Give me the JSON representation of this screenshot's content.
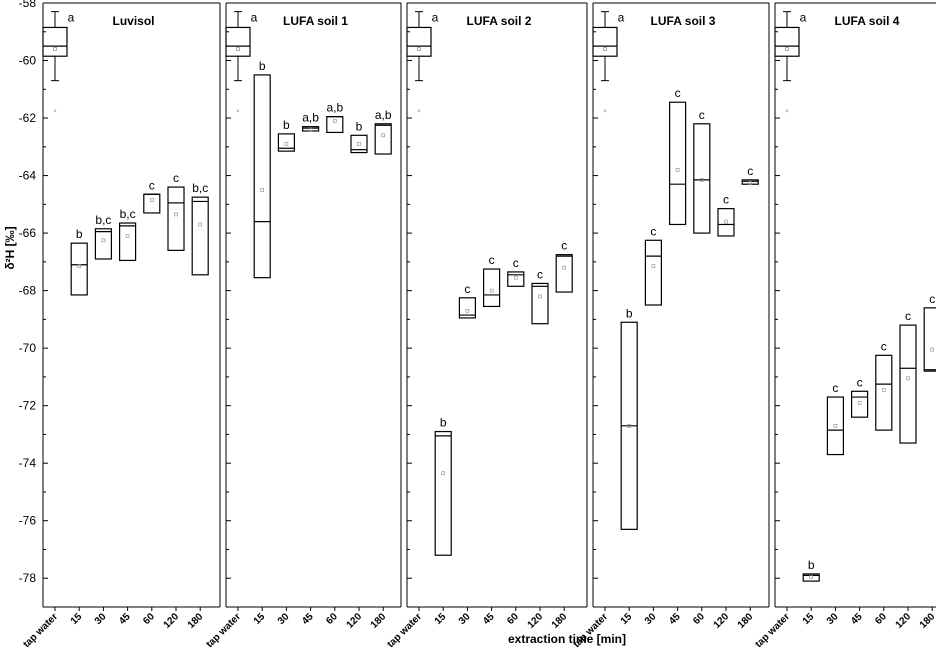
{
  "chart_data": {
    "type": "box",
    "xlabel": "extraction time [min]",
    "ylabel": "δ²H [‰]",
    "ylim": [
      -79,
      -58
    ],
    "yticks": [
      -58,
      -60,
      -62,
      -64,
      -66,
      -68,
      -70,
      -72,
      -74,
      -76,
      -78
    ],
    "categories": [
      "tap water",
      "15",
      "30",
      "45",
      "60",
      "120",
      "180"
    ],
    "tap_water": {
      "whisker_top": -58.3,
      "q3": -58.85,
      "median": -59.5,
      "q1": -59.85,
      "whisker_bottom": -60.7,
      "mean": -59.6,
      "outlier": -61.75,
      "letter": "a"
    },
    "panels": [
      {
        "title": "Luvisol",
        "boxes": [
          {
            "category": "15",
            "q3": -66.35,
            "median": -67.1,
            "q1": -68.15,
            "mean": -67.15,
            "letter": "b"
          },
          {
            "category": "30",
            "q3": -65.85,
            "median": -65.95,
            "q1": -66.9,
            "mean": -66.25,
            "letter": "b,c"
          },
          {
            "category": "45",
            "q3": -65.65,
            "median": -65.75,
            "q1": -66.95,
            "mean": -66.1,
            "letter": "b,c"
          },
          {
            "category": "60",
            "q3": -64.65,
            "median": -64.65,
            "q1": -65.3,
            "mean": -64.85,
            "letter": "c"
          },
          {
            "category": "120",
            "q3": -64.4,
            "median": -64.95,
            "q1": -66.6,
            "mean": -65.35,
            "letter": "c"
          },
          {
            "category": "180",
            "q3": -64.75,
            "median": -64.9,
            "q1": -67.45,
            "mean": -65.7,
            "letter": "b,c"
          }
        ]
      },
      {
        "title": "LUFA soil 1",
        "boxes": [
          {
            "category": "15",
            "q3": -60.5,
            "median": -65.6,
            "q1": -67.55,
            "mean": -64.5,
            "letter": "b"
          },
          {
            "category": "30",
            "q3": -62.55,
            "median": -63.05,
            "q1": -63.15,
            "mean": -62.9,
            "letter": "b"
          },
          {
            "category": "45",
            "q3": -62.3,
            "median": -62.35,
            "q1": -62.45,
            "mean": -62.4,
            "letter": "a,b"
          },
          {
            "category": "60",
            "q3": -61.95,
            "median": -61.95,
            "q1": -62.5,
            "mean": -62.1,
            "letter": "a,b"
          },
          {
            "category": "120",
            "q3": -62.6,
            "median": -63.1,
            "q1": -63.2,
            "mean": -62.9,
            "letter": "b"
          },
          {
            "category": "180",
            "q3": -62.2,
            "median": -62.25,
            "q1": -63.25,
            "mean": -62.6,
            "letter": "a,b"
          }
        ]
      },
      {
        "title": "LUFA soil 2",
        "boxes": [
          {
            "category": "15",
            "q3": -72.9,
            "median": -73.05,
            "q1": -77.2,
            "mean": -74.35,
            "letter": "b"
          },
          {
            "category": "30",
            "q3": -68.25,
            "median": -68.85,
            "q1": -68.95,
            "mean": -68.7,
            "letter": "c"
          },
          {
            "category": "45",
            "q3": -67.25,
            "median": -68.15,
            "q1": -68.55,
            "mean": -68.0,
            "letter": "c"
          },
          {
            "category": "60",
            "q3": -67.35,
            "median": -67.45,
            "q1": -67.85,
            "mean": -67.55,
            "letter": "c"
          },
          {
            "category": "120",
            "q3": -67.75,
            "median": -67.85,
            "q1": -69.15,
            "mean": -68.2,
            "letter": "c"
          },
          {
            "category": "180",
            "q3": -66.75,
            "median": -66.8,
            "q1": -68.05,
            "mean": -67.2,
            "letter": "c"
          }
        ]
      },
      {
        "title": "LUFA soil 3",
        "boxes": [
          {
            "category": "15",
            "q3": -69.1,
            "median": -72.7,
            "q1": -76.3,
            "mean": -72.7,
            "letter": "b"
          },
          {
            "category": "30",
            "q3": -66.25,
            "median": -66.8,
            "q1": -68.5,
            "mean": -67.15,
            "letter": "c"
          },
          {
            "category": "45",
            "q3": -61.45,
            "median": -64.3,
            "q1": -65.7,
            "mean": -63.8,
            "letter": "c"
          },
          {
            "category": "60",
            "q3": -62.2,
            "median": -64.15,
            "q1": -66.0,
            "mean": -64.15,
            "letter": "c"
          },
          {
            "category": "120",
            "q3": -65.15,
            "median": -65.7,
            "q1": -66.1,
            "mean": -65.6,
            "letter": "c"
          },
          {
            "category": "180",
            "q3": -64.15,
            "median": -64.2,
            "q1": -64.3,
            "mean": -64.25,
            "letter": "c"
          }
        ]
      },
      {
        "title": "LUFA soil 4",
        "boxes": [
          {
            "category": "15",
            "q3": -77.85,
            "median": -77.9,
            "q1": -78.1,
            "mean": -77.95,
            "letter": "b"
          },
          {
            "category": "30",
            "q3": -71.7,
            "median": -72.85,
            "q1": -73.7,
            "mean": -72.7,
            "letter": "c"
          },
          {
            "category": "45",
            "q3": -71.5,
            "median": -71.7,
            "q1": -72.4,
            "mean": -71.9,
            "letter": "c"
          },
          {
            "category": "60",
            "q3": -70.25,
            "median": -71.25,
            "q1": -72.85,
            "mean": -71.45,
            "letter": "c"
          },
          {
            "category": "120",
            "q3": -69.2,
            "median": -70.7,
            "q1": -73.3,
            "mean": -71.05,
            "letter": "c"
          },
          {
            "category": "180",
            "q3": -68.6,
            "median": -70.75,
            "q1": -70.8,
            "mean": -70.05,
            "letter": "c"
          }
        ]
      }
    ]
  }
}
